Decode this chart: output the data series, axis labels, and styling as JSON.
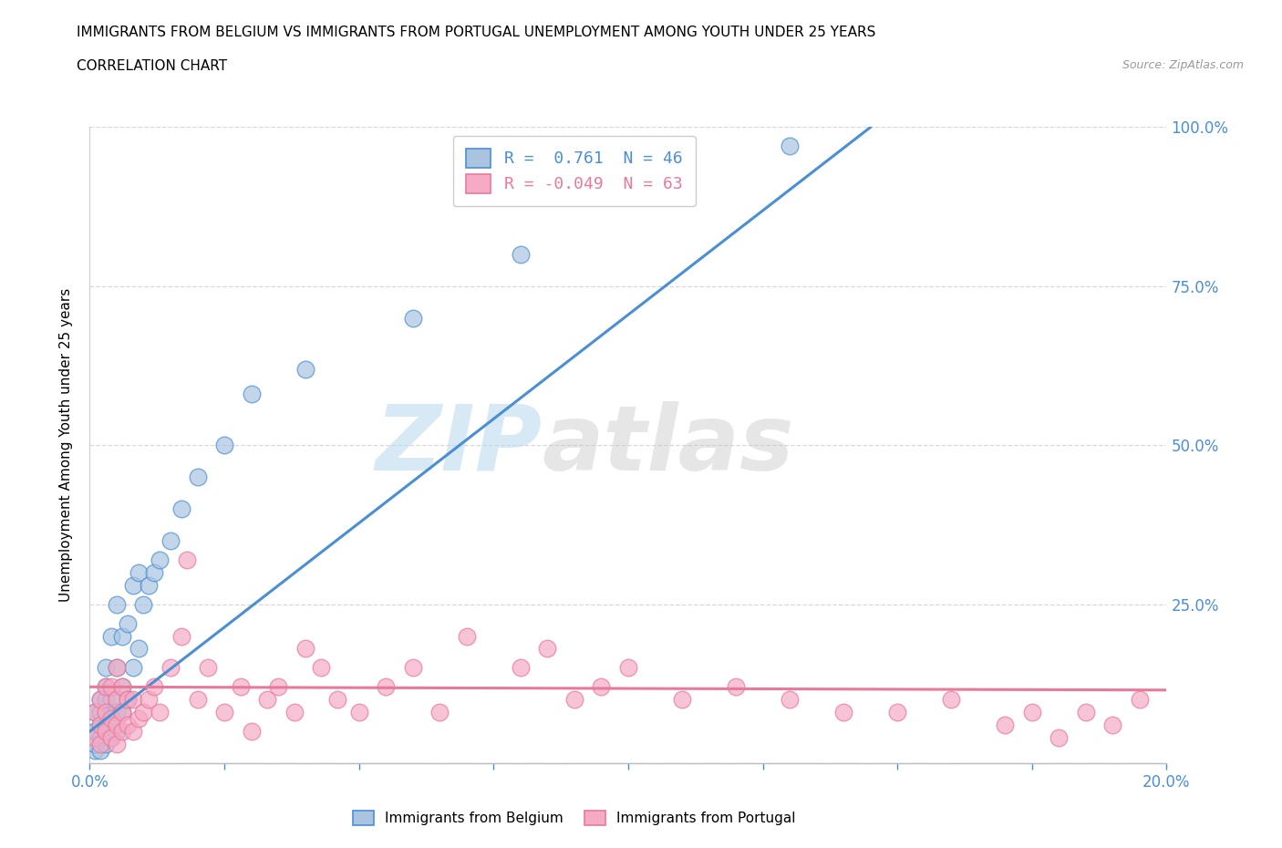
{
  "title_line1": "IMMIGRANTS FROM BELGIUM VS IMMIGRANTS FROM PORTUGAL UNEMPLOYMENT AMONG YOUTH UNDER 25 YEARS",
  "title_line2": "CORRELATION CHART",
  "source_text": "Source: ZipAtlas.com",
  "ylabel": "Unemployment Among Youth under 25 years",
  "xlim": [
    0,
    0.2
  ],
  "ylim": [
    0,
    1.0
  ],
  "belgium_color": "#aac4e0",
  "portugal_color": "#f5aac5",
  "belgium_line_color": "#4a8fd4",
  "portugal_line_color": "#e8799a",
  "belgium_R": 0.761,
  "belgium_N": 46,
  "portugal_R": -0.049,
  "portugal_N": 63,
  "watermark_zip": "ZIP",
  "watermark_atlas": "atlas",
  "grid_color": "#d8d8d8",
  "belgium_scatter_x": [
    0.001,
    0.001,
    0.001,
    0.001,
    0.002,
    0.002,
    0.002,
    0.002,
    0.002,
    0.003,
    0.003,
    0.003,
    0.003,
    0.003,
    0.003,
    0.003,
    0.004,
    0.004,
    0.004,
    0.004,
    0.005,
    0.005,
    0.005,
    0.005,
    0.006,
    0.006,
    0.006,
    0.007,
    0.007,
    0.008,
    0.008,
    0.009,
    0.009,
    0.01,
    0.011,
    0.012,
    0.013,
    0.015,
    0.017,
    0.02,
    0.025,
    0.03,
    0.04,
    0.06,
    0.08,
    0.13
  ],
  "belgium_scatter_y": [
    0.02,
    0.03,
    0.05,
    0.08,
    0.02,
    0.04,
    0.06,
    0.08,
    0.1,
    0.03,
    0.05,
    0.06,
    0.08,
    0.1,
    0.12,
    0.15,
    0.04,
    0.06,
    0.1,
    0.2,
    0.05,
    0.08,
    0.15,
    0.25,
    0.08,
    0.12,
    0.2,
    0.1,
    0.22,
    0.15,
    0.28,
    0.18,
    0.3,
    0.25,
    0.28,
    0.3,
    0.32,
    0.35,
    0.4,
    0.45,
    0.5,
    0.58,
    0.62,
    0.7,
    0.8,
    0.97
  ],
  "portugal_scatter_x": [
    0.001,
    0.001,
    0.002,
    0.002,
    0.002,
    0.003,
    0.003,
    0.003,
    0.004,
    0.004,
    0.004,
    0.005,
    0.005,
    0.005,
    0.005,
    0.006,
    0.006,
    0.006,
    0.007,
    0.007,
    0.008,
    0.008,
    0.009,
    0.01,
    0.011,
    0.012,
    0.013,
    0.015,
    0.017,
    0.018,
    0.02,
    0.022,
    0.025,
    0.028,
    0.03,
    0.033,
    0.035,
    0.038,
    0.04,
    0.043,
    0.046,
    0.05,
    0.055,
    0.06,
    0.065,
    0.07,
    0.08,
    0.085,
    0.09,
    0.095,
    0.1,
    0.11,
    0.12,
    0.13,
    0.14,
    0.15,
    0.16,
    0.17,
    0.175,
    0.18,
    0.185,
    0.19,
    0.195
  ],
  "portugal_scatter_y": [
    0.04,
    0.08,
    0.03,
    0.06,
    0.1,
    0.05,
    0.08,
    0.12,
    0.04,
    0.07,
    0.12,
    0.03,
    0.06,
    0.1,
    0.15,
    0.05,
    0.08,
    0.12,
    0.06,
    0.1,
    0.05,
    0.1,
    0.07,
    0.08,
    0.1,
    0.12,
    0.08,
    0.15,
    0.2,
    0.32,
    0.1,
    0.15,
    0.08,
    0.12,
    0.05,
    0.1,
    0.12,
    0.08,
    0.18,
    0.15,
    0.1,
    0.08,
    0.12,
    0.15,
    0.08,
    0.2,
    0.15,
    0.18,
    0.1,
    0.12,
    0.15,
    0.1,
    0.12,
    0.1,
    0.08,
    0.08,
    0.1,
    0.06,
    0.08,
    0.04,
    0.08,
    0.06,
    0.1
  ],
  "belgium_line_x": [
    0.0,
    0.145
  ],
  "belgium_line_y": [
    0.05,
    1.0
  ],
  "portugal_line_x": [
    0.0,
    0.2
  ],
  "portugal_line_y": [
    0.12,
    0.115
  ]
}
